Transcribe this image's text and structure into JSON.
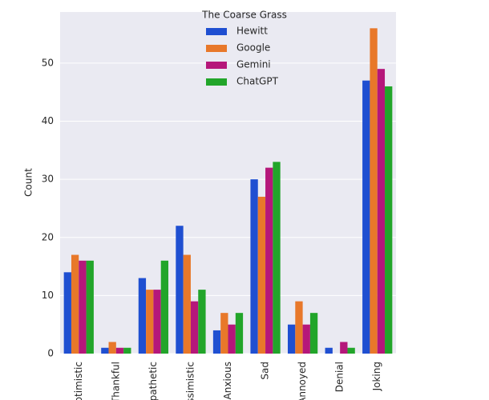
{
  "chart_data": {
    "type": "bar",
    "legend_title": "The Coarse Grass",
    "y_label": "Count",
    "categories": [
      "Optimistic",
      "Thankful",
      "Empathetic",
      "Pessimistic",
      "Anxious",
      "Sad",
      "Annoyed",
      "Denial",
      "Joking"
    ],
    "series": [
      {
        "name": "Hewitt",
        "color": "#1f4fd1",
        "values": [
          14,
          1,
          13,
          22,
          4,
          30,
          5,
          1,
          47
        ]
      },
      {
        "name": "Google",
        "color": "#e8782a",
        "values": [
          17,
          2,
          11,
          17,
          7,
          27,
          9,
          0,
          56
        ]
      },
      {
        "name": "Gemini",
        "color": "#b5177a",
        "values": [
          16,
          1,
          11,
          9,
          5,
          32,
          5,
          2,
          49
        ]
      },
      {
        "name": "ChatGPT",
        "color": "#22a52a",
        "values": [
          16,
          1,
          16,
          11,
          7,
          33,
          7,
          1,
          46
        ]
      }
    ],
    "ylim": [
      0,
      58.8
    ],
    "yticks": [
      0,
      10,
      20,
      30,
      40,
      50
    ],
    "grid": true,
    "legend": "upper center"
  }
}
